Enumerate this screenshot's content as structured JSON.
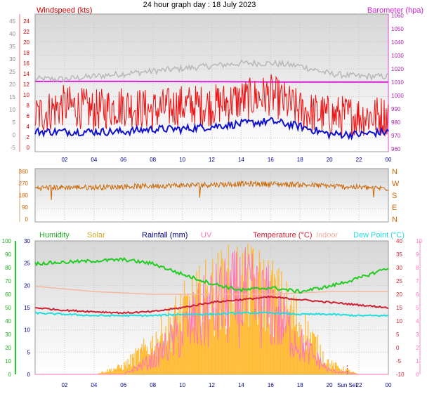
{
  "title": "24 hour graph day : 18 July 2023",
  "x_ticks": [
    "02",
    "04",
    "06",
    "08",
    "10",
    "12",
    "14",
    "16",
    "18",
    "20",
    "22",
    "00"
  ],
  "x_ticks_bottom": [
    "02",
    "04",
    "06",
    "08",
    "10",
    "12",
    "14",
    "16",
    "18",
    "20",
    "Sun Set",
    "22",
    "00"
  ],
  "chart_data": [
    {
      "type": "line",
      "panel": "wind",
      "title": "",
      "left_axis": {
        "label": "Windspeed (kts)",
        "ticks": [
          "-5",
          "0",
          "5",
          "10",
          "15",
          "20",
          "25",
          "30",
          "35",
          "40",
          "45"
        ],
        "ylim": [
          -5,
          45
        ]
      },
      "inner_left_axis": {
        "ticks": [
          "0",
          "2",
          "4",
          "6",
          "8",
          "10",
          "12",
          "14",
          "16",
          "18",
          "20",
          "22",
          "24"
        ],
        "ylim": [
          0,
          24
        ]
      },
      "right_axis": {
        "label": "Barometer (hpa)",
        "ticks": [
          "960",
          "970",
          "980",
          "990",
          "1000",
          "1010",
          "1020",
          "1030",
          "1040",
          "1050",
          "1060"
        ],
        "ylim": [
          955,
          1062
        ]
      },
      "x": [
        "00",
        "02",
        "04",
        "06",
        "08",
        "10",
        "12",
        "14",
        "16",
        "18",
        "20",
        "22",
        "00"
      ],
      "series": [
        {
          "name": "Barometer",
          "axis": "right",
          "color": "#dd22dd",
          "values": [
            1010.5,
            1010.6,
            1010.6,
            1010.6,
            1010.5,
            1010.5,
            1010.4,
            1010.3,
            1010.2,
            1010.1,
            1010.1,
            1010.1,
            1010.1
          ]
        },
        {
          "name": "Gust",
          "axis": "inner",
          "color": "#b8b8b8",
          "values": [
            13,
            13,
            13.5,
            14,
            14.5,
            15,
            15.5,
            16,
            16,
            15.5,
            14,
            13.5,
            13.5
          ]
        },
        {
          "name": "Windspeed",
          "axis": "inner",
          "color": "#ee1111",
          "values": [
            6,
            8,
            7,
            8,
            7,
            8,
            8,
            9,
            10,
            7,
            6,
            6,
            6
          ]
        },
        {
          "name": "Average",
          "axis": "inner",
          "color": "#1111cc",
          "values": [
            3,
            3,
            3,
            3,
            3.5,
            3.5,
            4,
            4.5,
            5,
            4,
            2.5,
            2.5,
            3
          ]
        }
      ]
    },
    {
      "type": "line",
      "panel": "direction",
      "left_axis": {
        "ticks": [
          "0",
          "90",
          "180",
          "270",
          "360"
        ],
        "ylim": [
          0,
          360
        ]
      },
      "right_axis": {
        "ticks": [
          "N",
          "W",
          "S",
          "E",
          "N"
        ]
      },
      "x": [
        "00",
        "02",
        "04",
        "06",
        "08",
        "10",
        "12",
        "14",
        "16",
        "18",
        "20",
        "22",
        "00"
      ],
      "series": [
        {
          "name": "Direction",
          "color": "#cc6600",
          "values": [
            235,
            240,
            240,
            245,
            250,
            255,
            260,
            265,
            265,
            260,
            250,
            240,
            230
          ]
        }
      ]
    },
    {
      "type": "line",
      "panel": "weather",
      "legend": [
        "Humidity",
        "Solar",
        "Rainfall (mm)",
        "UV",
        "Temperature (°C)",
        "Indoor",
        "Dew Point (°C)"
      ],
      "left_axis": {
        "label": "Humidity",
        "ticks": [
          "0",
          "10",
          "20",
          "30",
          "40",
          "50",
          "60",
          "70",
          "80",
          "90",
          "100"
        ],
        "ylim": [
          0,
          100
        ]
      },
      "inner_left_axis": {
        "label": "Rainfall (mm)",
        "ticks": [
          "0",
          "5",
          "10",
          "15",
          "20",
          "25",
          "30"
        ],
        "ylim": [
          0,
          30
        ]
      },
      "right_axis": {
        "label": "Temperature (°C)",
        "ticks": [
          "-10",
          "-5",
          "0",
          "5",
          "10",
          "15",
          "20",
          "25",
          "30",
          "35",
          "40"
        ],
        "ylim": [
          -10,
          40
        ]
      },
      "outer_right_axis": {
        "label": "UV",
        "ticks": [
          "0",
          "1",
          "2",
          "3",
          "4",
          "5",
          "6",
          "7",
          "8",
          "9",
          "10"
        ],
        "ylim": [
          0,
          10
        ]
      },
      "x": [
        "00",
        "02",
        "04",
        "06",
        "08",
        "10",
        "12",
        "14",
        "16",
        "18",
        "20",
        "22",
        "00"
      ],
      "series": [
        {
          "name": "Humidity",
          "axis": "left",
          "color": "#22cc22",
          "values": [
            83,
            84,
            85,
            86,
            83,
            75,
            68,
            63,
            65,
            62,
            66,
            72,
            80
          ]
        },
        {
          "name": "Solar",
          "axis": "uv_scale",
          "color": "#ffbb33",
          "values": [
            0,
            0,
            0,
            0.8,
            3,
            6,
            8,
            9,
            8,
            5,
            1,
            0,
            0
          ]
        },
        {
          "name": "UV",
          "axis": "uv",
          "color": "#ff77bb",
          "values": [
            0,
            0,
            0,
            0,
            1.2,
            3.5,
            5.5,
            6.5,
            5.5,
            2.5,
            0.3,
            0,
            0
          ]
        },
        {
          "name": "Temperature (°C)",
          "axis": "right",
          "color": "#cc2233",
          "values": [
            15,
            14,
            13.5,
            13,
            13.5,
            15,
            17,
            18,
            19,
            18,
            17,
            16,
            15
          ]
        },
        {
          "name": "Indoor",
          "axis": "right",
          "color": "#f5b8a0",
          "values": [
            23,
            22,
            21,
            20.5,
            20,
            20,
            20,
            20,
            20,
            20.5,
            21,
            21,
            21
          ]
        },
        {
          "name": "Dew Point (°C)",
          "axis": "right",
          "color": "#22dddd",
          "values": [
            13,
            12.5,
            12,
            12,
            12,
            12.5,
            12.5,
            13,
            13,
            12.5,
            12.5,
            12,
            12
          ]
        }
      ]
    }
  ]
}
